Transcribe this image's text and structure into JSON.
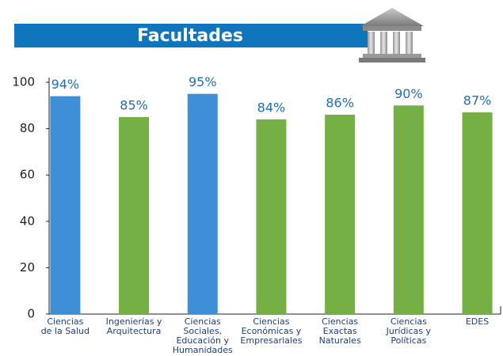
{
  "chart_data": {
    "type": "bar",
    "title": "Facultades",
    "categories": [
      [
        "Ciencias",
        "de la Salud"
      ],
      [
        "Ingenierías y",
        "Arquitectura"
      ],
      [
        "Ciencias",
        "Sociales,",
        "Educación y",
        "Humanidades"
      ],
      [
        "Ciencias",
        "Económicas y",
        "Empresariales"
      ],
      [
        "Ciencias",
        "Exactas",
        "Naturales"
      ],
      [
        "Ciencias",
        "Jurídicas y",
        "Políticas"
      ],
      [
        "EDES"
      ]
    ],
    "values": [
      94,
      85,
      95,
      84,
      86,
      90,
      87
    ],
    "value_labels": [
      "94%",
      "85%",
      "95%",
      "84%",
      "86%",
      "90%",
      "87%"
    ],
    "colors": [
      "#3f8fd6",
      "#74b043",
      "#3f8fd6",
      "#74b043",
      "#74b043",
      "#74b043",
      "#74b043"
    ],
    "ylim": [
      0,
      100
    ],
    "yticks": [
      0,
      20,
      40,
      60,
      80,
      100
    ]
  }
}
